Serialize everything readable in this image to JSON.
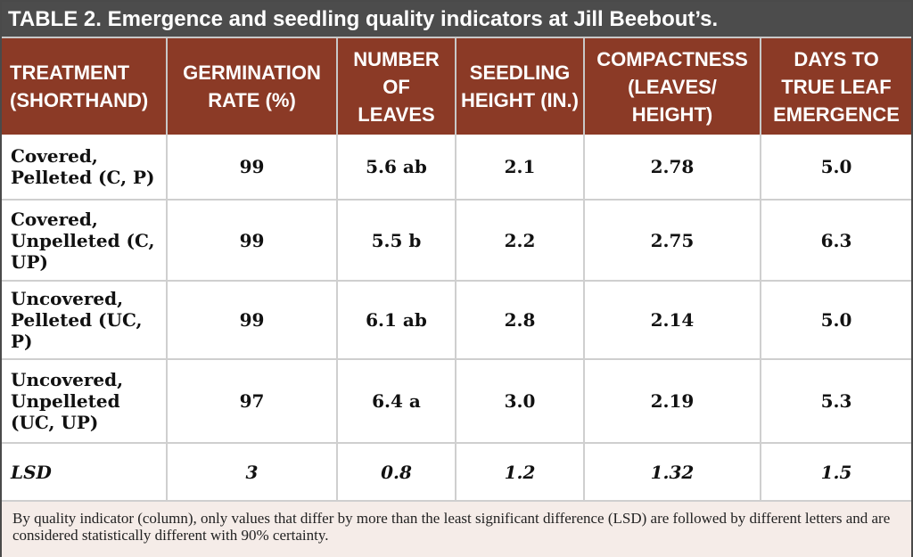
{
  "title": "TABLE 2. Emergence and seedling quality indicators at Jill Beebout’s.",
  "headers": [
    "TREATMENT (SHORTHAND)",
    "GERMINATION RATE (%)",
    "NUMBER OF LEAVES",
    "SEEDLING HEIGHT (IN.)",
    "COMPACTNESS (LEAVES/ HEIGHT)",
    "DAYS TO TRUE LEAF EMERGENCE"
  ],
  "rows": [
    [
      "Covered, Pelleted (C, P)",
      "99",
      "5.6 ab",
      "2.1",
      "2.78",
      "5.0"
    ],
    [
      "Covered, Unpelleted (C, UP)",
      "99",
      "5.5 b",
      "2.2",
      "2.75",
      "6.3"
    ],
    [
      "Uncovered, Pelleted (UC, P)",
      "99",
      "6.1 ab",
      "2.8",
      "2.14",
      "5.0"
    ],
    [
      "Uncovered, Unpelleted (UC, UP)",
      "97",
      "6.4 a",
      "3.0",
      "2.19",
      "5.3"
    ]
  ],
  "lsd_row": [
    "LSD",
    "3",
    "0.8",
    "1.2",
    "1.32",
    "1.5"
  ],
  "footnote": "By quality indicator (column), only values that differ by more than the least significant difference (LSD) are followed by different letters and are considered statistically different with 90% certainty.",
  "colors": {
    "title_bar": "#4c4c4c",
    "header": "#8b3a26",
    "footnote_bg": "#f5ece8"
  }
}
